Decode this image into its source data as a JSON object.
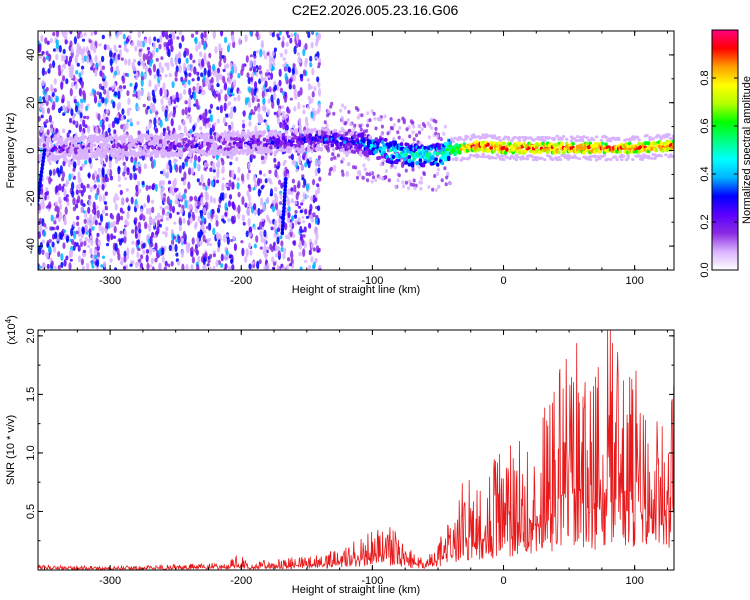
{
  "title": "C2E2.2026.005.23.16.G06",
  "chart_data": [
    {
      "type": "heatmap",
      "xlabel": "Height of straight line (km)",
      "ylabel": "Frequency (Hz)",
      "xlim": [
        -355,
        130
      ],
      "ylim": [
        -50,
        50
      ],
      "xticks": [
        -300,
        -200,
        -100,
        0,
        100
      ],
      "yticks": [
        -40,
        -20,
        0,
        20,
        40
      ],
      "xtick_labels": [
        "-300",
        "-200",
        "-100",
        "0",
        "100"
      ],
      "ytick_labels": [
        "-40",
        "-20",
        "0",
        "20",
        "40"
      ],
      "colorbar": {
        "label": "Normalized spectral amplitude",
        "range": [
          0,
          1
        ],
        "ticks": [
          0.0,
          0.2,
          0.4,
          0.6,
          0.8
        ],
        "tick_labels": [
          "0.0",
          "0.2",
          "0.4",
          "0.6",
          "0.8"
        ],
        "colors": [
          "#ffffff",
          "#d9b3ff",
          "#8a2be2",
          "#5a00ff",
          "#0000ff",
          "#00b4ff",
          "#00ffff",
          "#00ff80",
          "#00ff00",
          "#b4ff00",
          "#ffff00",
          "#ffa000",
          "#ff0000",
          "#ff0080"
        ]
      },
      "trend": {
        "x": [
          -355,
          -300,
          -250,
          -200,
          -160,
          -130,
          -110,
          -90,
          -70,
          -50,
          -40,
          -30,
          -20,
          0,
          50,
          100,
          130
        ],
        "y": [
          0,
          2,
          2,
          3,
          4,
          5,
          3,
          0,
          -2,
          -2,
          0,
          1,
          2,
          1,
          1,
          1,
          2
        ],
        "amplitude": [
          0.15,
          0.15,
          0.18,
          0.2,
          0.25,
          0.3,
          0.35,
          0.45,
          0.5,
          0.5,
          0.6,
          0.85,
          0.9,
          0.9,
          0.9,
          0.9,
          0.9
        ]
      }
    },
    {
      "type": "line",
      "xlabel": "Height of straight line (km)",
      "ylabel": "SNR (10 * v/v)",
      "y_multiplier_label": "(x10",
      "y_multiplier_exp": "4",
      "xlim": [
        -355,
        130
      ],
      "ylim": [
        0,
        20500
      ],
      "xticks": [
        -300,
        -200,
        -100,
        0,
        100
      ],
      "yticks": [
        5000,
        10000,
        15000,
        20000
      ],
      "xtick_labels": [
        "-300",
        "-200",
        "-100",
        "0",
        "100"
      ],
      "ytick_labels": [
        "0.5",
        "1.0",
        "1.5",
        "2.0"
      ],
      "series": [
        {
          "color": "#e8191b",
          "x": [
            -355,
            -300,
            -250,
            -210,
            -200,
            -195,
            -160,
            -140,
            -120,
            -100,
            -90,
            -80,
            -70,
            -60,
            -50,
            -40,
            -35,
            -30,
            -25,
            -20,
            -15,
            -10,
            -5,
            0,
            10,
            20,
            30,
            40,
            50,
            60,
            70,
            80,
            90,
            100,
            110,
            120,
            130
          ],
          "y": [
            300,
            250,
            350,
            500,
            1200,
            500,
            800,
            1000,
            1500,
            2500,
            3000,
            2200,
            1200,
            600,
            1800,
            3500,
            4000,
            6000,
            5500,
            5000,
            7000,
            6000,
            8000,
            7000,
            8500,
            9000,
            10000,
            12000,
            15000,
            14000,
            12000,
            16000,
            15000,
            13000,
            11000,
            9500,
            12000
          ]
        }
      ]
    }
  ]
}
